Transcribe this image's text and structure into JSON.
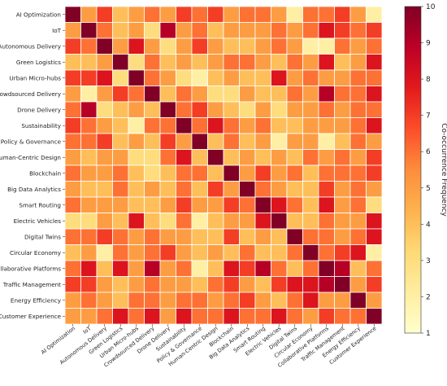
{
  "chart_data": {
    "type": "heatmap",
    "title": "",
    "xlabel": "",
    "ylabel": "",
    "categories": [
      "AI Optimization",
      "IoT",
      "Autonomous Delivery",
      "Green Logistics",
      "Urban Micro-hubs",
      "Crowdsourced Delivery",
      "Drone Delivery",
      "Sustainability",
      "Policy & Governance",
      "Human-Centric Design",
      "Blockchain",
      "Big Data Analytics",
      "Smart Routing",
      "Electric Vehicles",
      "Digital Twins",
      "Circular Economy",
      "Collaborative Platforms",
      "Traffic Management",
      "Energy Efficiency",
      "Customer Experience"
    ],
    "values": [
      [
        10,
        5,
        7,
        4,
        5,
        6,
        5,
        7,
        6,
        7,
        5,
        6,
        6,
        5,
        2,
        6,
        6,
        7,
        5,
        2
      ],
      [
        5,
        10,
        6,
        4,
        5,
        3,
        9,
        5,
        6,
        4,
        5,
        5,
        5,
        6,
        5,
        6,
        8,
        7,
        6,
        7
      ],
      [
        7,
        6,
        10,
        5,
        8,
        5,
        3,
        5,
        7,
        5,
        4,
        4,
        5,
        6,
        5,
        2,
        2,
        6,
        5,
        6
      ],
      [
        4,
        4,
        5,
        10,
        3,
        6,
        4,
        5,
        4,
        5,
        6,
        6,
        5,
        4,
        6,
        5,
        8,
        4,
        5,
        8
      ],
      [
        7,
        7,
        8,
        3,
        10,
        6,
        5,
        3,
        2,
        4,
        5,
        4,
        4,
        8,
        5,
        6,
        5,
        5,
        6,
        6
      ],
      [
        5,
        2,
        5,
        7,
        6,
        10,
        4,
        6,
        5,
        3,
        3,
        5,
        4,
        4,
        6,
        5,
        9,
        6,
        6,
        8
      ],
      [
        6,
        9,
        3,
        4,
        5,
        4,
        10,
        6,
        7,
        5,
        4,
        3,
        5,
        3,
        5,
        5,
        6,
        5,
        6,
        6
      ],
      [
        7,
        6,
        5,
        4,
        2,
        6,
        6,
        10,
        6,
        8,
        6,
        5,
        6,
        4,
        4,
        5,
        5,
        5,
        6,
        8
      ],
      [
        6,
        6,
        7,
        4,
        5,
        4,
        7,
        5,
        10,
        4,
        6,
        4,
        5,
        2,
        5,
        5,
        2,
        4,
        6,
        5
      ],
      [
        5,
        4,
        5,
        5,
        3,
        3,
        6,
        8,
        4,
        10,
        4,
        5,
        4,
        5,
        4,
        6,
        5,
        6,
        5,
        7
      ],
      [
        6,
        5,
        5,
        6,
        4,
        3,
        4,
        6,
        6,
        4,
        10,
        5,
        7,
        5,
        6,
        4,
        6,
        6,
        6,
        7
      ],
      [
        5,
        4,
        4,
        6,
        4,
        5,
        4,
        6,
        4,
        7,
        5,
        10,
        6,
        5,
        4,
        4,
        7,
        5,
        6,
        5
      ],
      [
        6,
        5,
        5,
        5,
        4,
        4,
        5,
        7,
        5,
        5,
        7,
        6,
        10,
        8,
        6,
        4,
        8,
        5,
        6,
        3
      ],
      [
        3,
        3,
        5,
        4,
        8,
        4,
        3,
        6,
        2,
        4,
        5,
        5,
        8,
        10,
        4,
        4,
        6,
        5,
        5,
        8
      ],
      [
        6,
        6,
        7,
        6,
        5,
        6,
        5,
        5,
        4,
        4,
        7,
        4,
        5,
        4,
        10,
        6,
        6,
        5,
        6,
        8
      ],
      [
        4,
        5,
        2,
        6,
        5,
        6,
        7,
        5,
        4,
        5,
        4,
        6,
        4,
        4,
        6,
        10,
        6,
        7,
        8,
        2
      ],
      [
        6,
        8,
        4,
        8,
        5,
        9,
        5,
        6,
        2,
        4,
        8,
        7,
        9,
        6,
        4,
        6,
        10,
        9,
        4,
        6
      ],
      [
        7,
        7,
        5,
        4,
        5,
        6,
        5,
        5,
        4,
        6,
        7,
        5,
        4,
        7,
        8,
        8,
        9,
        10,
        5,
        7
      ],
      [
        5,
        6,
        5,
        4,
        6,
        6,
        5,
        6,
        6,
        5,
        6,
        7,
        5,
        4,
        6,
        8,
        5,
        5,
        10,
        5
      ],
      [
        5,
        5,
        6,
        8,
        6,
        8,
        5,
        8,
        6,
        6,
        8,
        6,
        6,
        8,
        6,
        5,
        7,
        6,
        6,
        10
      ]
    ],
    "vmin": 1,
    "vmax": 10,
    "colorbar": {
      "label": "Co-occurrence Frequency",
      "ticks": [
        1,
        2,
        3,
        4,
        5,
        6,
        7,
        8,
        9,
        10
      ]
    },
    "colormap": [
      "#ffffcc",
      "#ffeda0",
      "#fed976",
      "#feb24c",
      "#fd8d3c",
      "#fc4e2a",
      "#e31a1c",
      "#bd0026",
      "#800026"
    ],
    "grid": false,
    "legend": "colorbar-right"
  }
}
